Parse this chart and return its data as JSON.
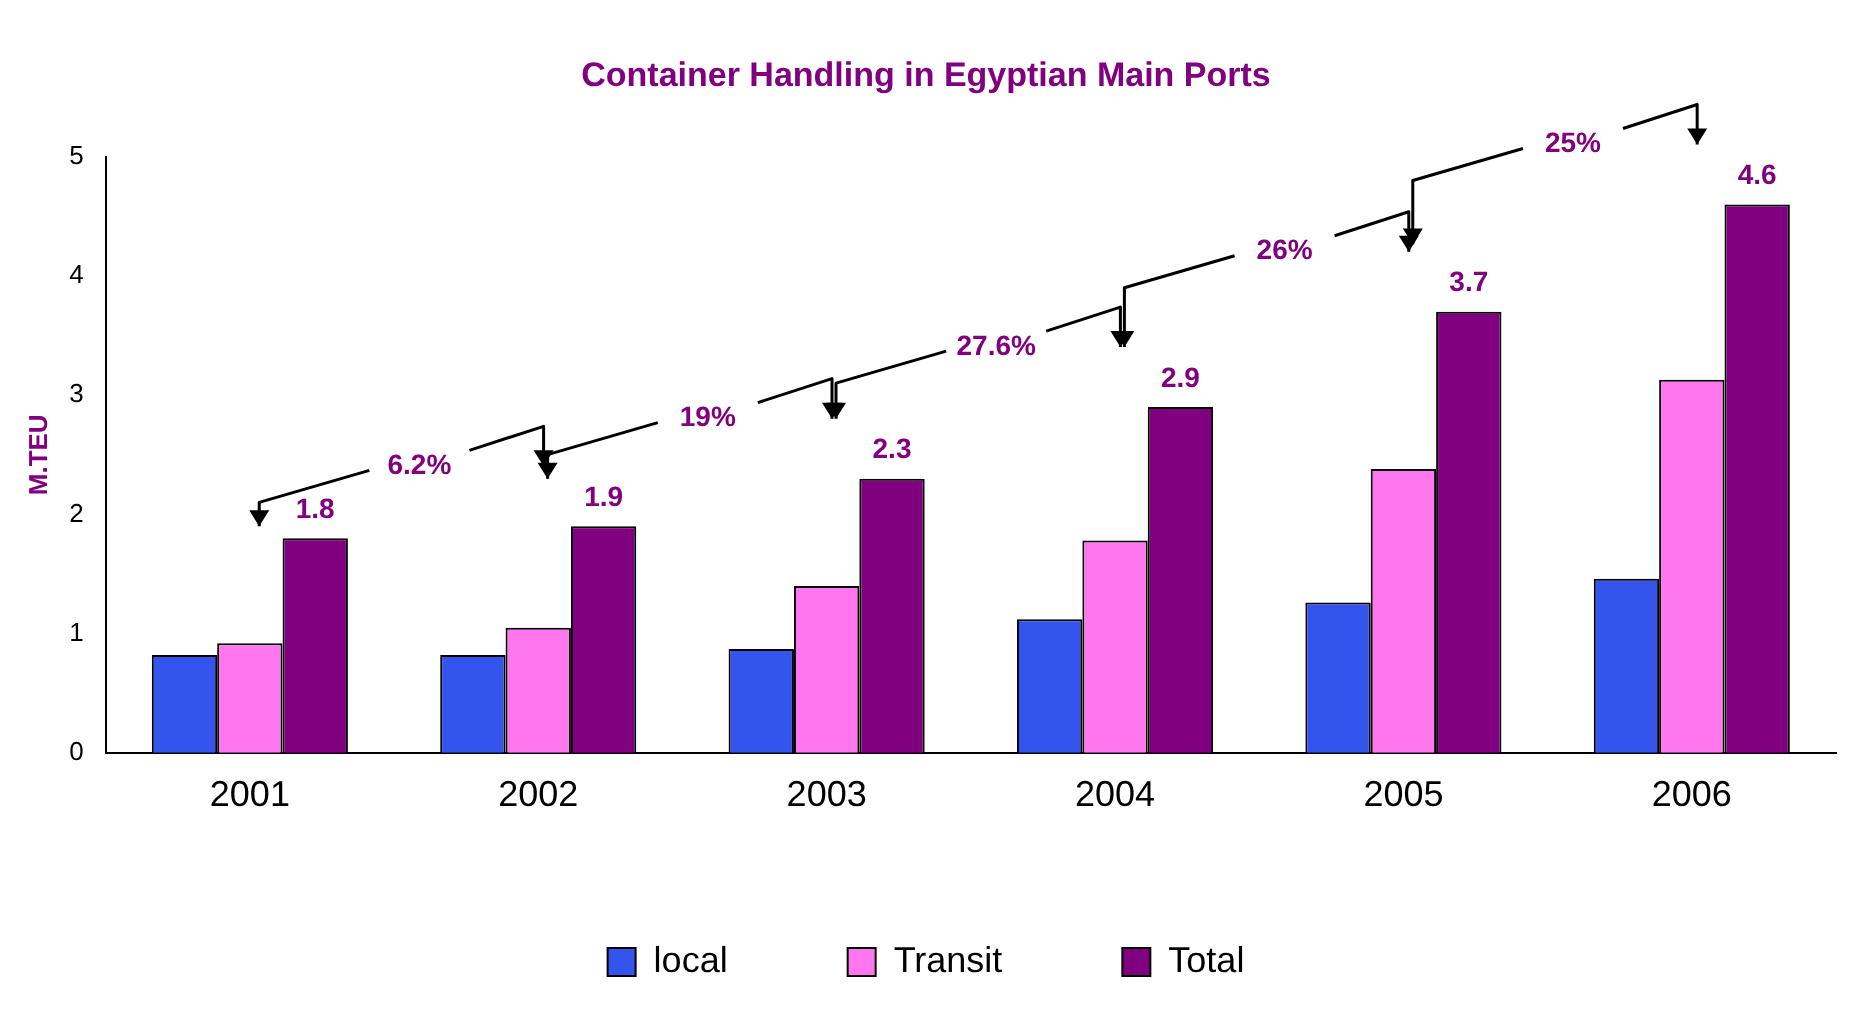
{
  "chart_data": {
    "type": "bar",
    "title": "Container Handling in Egyptian Main Ports",
    "ylabel": "M.TEU",
    "categories": [
      "2001",
      "2002",
      "2003",
      "2004",
      "2005",
      "2006"
    ],
    "series": [
      {
        "name": "local",
        "color": "#3355ee",
        "values": [
          0.82,
          0.82,
          0.87,
          1.12,
          1.26,
          1.46
        ]
      },
      {
        "name": "Transit",
        "color": "#ff77ee",
        "values": [
          0.92,
          1.05,
          1.4,
          1.78,
          2.38,
          3.13
        ]
      },
      {
        "name": "Total",
        "color": "#800080",
        "values": [
          1.8,
          1.9,
          2.3,
          2.9,
          3.7,
          4.6
        ],
        "value_labels": [
          "1.8",
          "1.9",
          "2.3",
          "2.9",
          "3.7",
          "4.6"
        ]
      }
    ],
    "ylim": [
      0,
      5
    ],
    "yticks": [
      0,
      1,
      2,
      3,
      4,
      5
    ],
    "grid": false,
    "legend": "bottom",
    "annotations": [
      "6.2%",
      "19%",
      "27.6%",
      "26%",
      "25%"
    ]
  }
}
